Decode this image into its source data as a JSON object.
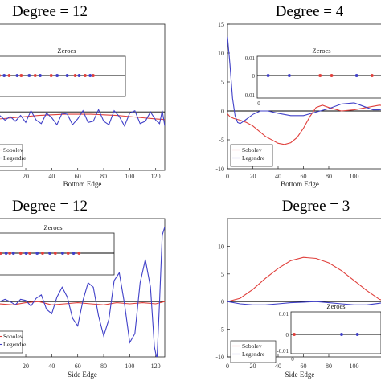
{
  "chart_data": [
    {
      "type": "line",
      "title": "Degree = 12",
      "xlabel": "Bottom Edge",
      "xlim": [
        -6,
        127
      ],
      "ylim": [
        -10,
        15
      ],
      "yticks": [],
      "xticks": [
        20,
        40,
        60,
        80,
        100,
        120
      ],
      "legend": [
        "Sobolev",
        "Legendre"
      ],
      "legend_placement": "bottom-left",
      "series": [
        {
          "name": "Sobolev",
          "color": "#e0403c",
          "x": [
            0,
            10,
            20,
            30,
            40,
            50,
            60,
            70,
            80,
            90,
            100,
            110,
            120,
            127
          ],
          "y": [
            -1.2,
            -1.0,
            -0.8,
            -0.6,
            -0.5,
            -0.4,
            -0.4,
            -0.4,
            -0.5,
            -0.6,
            -0.8,
            -1.0,
            -1.2,
            -1.3
          ]
        },
        {
          "name": "Legendre",
          "color": "#4040c8",
          "x": [
            0,
            4,
            8,
            12,
            16,
            20,
            24,
            28,
            32,
            36,
            40,
            44,
            48,
            52,
            56,
            60,
            64,
            68,
            72,
            76,
            80,
            84,
            88,
            92,
            96,
            100,
            104,
            108,
            112,
            116,
            120,
            123,
            125,
            127
          ],
          "y": [
            -0.6,
            -1.4,
            -0.8,
            -1.6,
            -0.6,
            -1.8,
            0.2,
            -1.4,
            -2.0,
            -0.2,
            -1.0,
            -2.2,
            -0.2,
            -0.4,
            -2.2,
            -1.2,
            0.2,
            -1.8,
            -1.6,
            0.4,
            -1.6,
            -2.2,
            0.2,
            -0.8,
            -2.4,
            -0.2,
            0.2,
            -2.0,
            -1.6,
            0.0,
            -1.4,
            -2.0,
            0.2,
            -2.4
          ]
        }
      ],
      "inset": {
        "title": "Zeroes",
        "show_ticks": false,
        "zeroes": [
          {
            "x": 2,
            "color": "#4040c8"
          },
          {
            "x": 4,
            "color": "#e0403c"
          },
          {
            "x": 9,
            "color": "#4040c8"
          },
          {
            "x": 14,
            "color": "#e0403c"
          },
          {
            "x": 22,
            "color": "#4040c8"
          },
          {
            "x": 26,
            "color": "#e0403c"
          },
          {
            "x": 34,
            "color": "#4040c8"
          },
          {
            "x": 40,
            "color": "#e0403c"
          },
          {
            "x": 45,
            "color": "#4040c8"
          },
          {
            "x": 56,
            "color": "#e0403c"
          },
          {
            "x": 62,
            "color": "#4040c8"
          },
          {
            "x": 72,
            "color": "#4040c8"
          },
          {
            "x": 80,
            "color": "#e0403c"
          },
          {
            "x": 84,
            "color": "#4040c8"
          },
          {
            "x": 90,
            "color": "#e0403c"
          },
          {
            "x": 95,
            "color": "#4040c8"
          },
          {
            "x": 98,
            "color": "#e0403c"
          }
        ]
      }
    },
    {
      "type": "line",
      "title": "Degree = 4",
      "xlabel": "Bottom Edge",
      "xlim": [
        0,
        127
      ],
      "ylim": [
        -10,
        15
      ],
      "yticks": [
        -10,
        -5,
        0,
        5,
        10,
        15
      ],
      "xticks": [
        0,
        20,
        40,
        60,
        80,
        100
      ],
      "legend": [
        "Sobolev",
        "Legendre"
      ],
      "legend_placement": "bottom-left",
      "series": [
        {
          "name": "Sobolev",
          "color": "#e0403c",
          "x": [
            0,
            2,
            5,
            10,
            15,
            20,
            30,
            40,
            45,
            50,
            55,
            60,
            65,
            70,
            75,
            80,
            90,
            100,
            110,
            120,
            127
          ],
          "y": [
            -0.5,
            -1.0,
            -1.3,
            -1.6,
            -2.0,
            -2.6,
            -4.4,
            -5.6,
            -5.8,
            -5.5,
            -4.6,
            -3.0,
            -1.0,
            0.6,
            1.0,
            0.6,
            0.0,
            0.2,
            0.6,
            1.0,
            0.8
          ]
        },
        {
          "name": "Legendre",
          "color": "#4040c8",
          "x": [
            0,
            2,
            4,
            6,
            8,
            10,
            14,
            20,
            26,
            32,
            40,
            50,
            60,
            70,
            80,
            90,
            100,
            105,
            110,
            115,
            120,
            127
          ],
          "y": [
            12.8,
            8.0,
            2.2,
            -0.8,
            -2.0,
            -2.2,
            -1.6,
            -0.6,
            0.0,
            0.0,
            -0.4,
            -0.8,
            -0.8,
            -0.2,
            0.4,
            1.2,
            1.4,
            1.0,
            0.6,
            0.2,
            0.2,
            0.6
          ]
        }
      ],
      "inset": {
        "title": "Zeroes",
        "show_ticks": true,
        "yticks": [
          "0.01",
          "0",
          "-0.01"
        ],
        "xticks_visible": [
          "0"
        ],
        "zeroes": [
          {
            "x": 8,
            "color": "#4040c8"
          },
          {
            "x": 30,
            "color": "#4040c8"
          },
          {
            "x": 62,
            "color": "#e0403c"
          },
          {
            "x": 74,
            "color": "#e0403c"
          },
          {
            "x": 100,
            "color": "#4040c8"
          },
          {
            "x": 116,
            "color": "#e0403c"
          }
        ]
      }
    },
    {
      "type": "line",
      "title": "Degree = 12",
      "xlabel": "Side Edge",
      "xlim": [
        -6,
        127
      ],
      "ylim": [
        -10,
        15
      ],
      "yticks": [],
      "xticks": [
        20,
        40,
        60,
        80,
        100,
        120
      ],
      "legend": [
        "Sobolev",
        "Legendre"
      ],
      "legend_placement": "bottom-left",
      "series": [
        {
          "name": "Sobolev",
          "color": "#e0403c",
          "x": [
            0,
            10,
            20,
            30,
            40,
            50,
            60,
            70,
            80,
            90,
            100,
            110,
            120,
            127
          ],
          "y": [
            -0.4,
            -0.6,
            -0.2,
            0.0,
            -0.6,
            -0.4,
            -0.2,
            -0.4,
            -0.6,
            -0.2,
            -0.4,
            -0.2,
            -0.4,
            0.0
          ]
        },
        {
          "name": "Legendre",
          "color": "#4040c8",
          "x": [
            0,
            4,
            8,
            12,
            16,
            20,
            24,
            28,
            32,
            36,
            40,
            44,
            48,
            52,
            56,
            60,
            64,
            68,
            72,
            76,
            80,
            84,
            88,
            92,
            96,
            100,
            104,
            108,
            112,
            116,
            119,
            121,
            123,
            125,
            127
          ],
          "y": [
            0.0,
            0.4,
            0.0,
            -0.6,
            0.4,
            0.2,
            -0.8,
            0.6,
            1.2,
            -1.4,
            -2.2,
            0.8,
            2.6,
            0.8,
            -3.0,
            -4.4,
            0.2,
            3.4,
            2.6,
            -2.6,
            -6.2,
            -3.2,
            3.8,
            5.2,
            -0.4,
            -7.4,
            -5.8,
            3.4,
            7.6,
            2.6,
            -8.2,
            -10.5,
            0.0,
            12.0,
            13.5
          ]
        }
      ],
      "inset": {
        "title": "Zeroes",
        "show_ticks": false,
        "zeroes": [
          {
            "x": 3,
            "color": "#4040c8"
          },
          {
            "x": 6,
            "color": "#e0403c"
          },
          {
            "x": 12,
            "color": "#4040c8"
          },
          {
            "x": 16,
            "color": "#e0403c"
          },
          {
            "x": 20,
            "color": "#4040c8"
          },
          {
            "x": 28,
            "color": "#e0403c"
          },
          {
            "x": 34,
            "color": "#4040c8"
          },
          {
            "x": 38,
            "color": "#e0403c"
          },
          {
            "x": 46,
            "color": "#4040c8"
          },
          {
            "x": 52,
            "color": "#e0403c"
          },
          {
            "x": 60,
            "color": "#4040c8"
          },
          {
            "x": 66,
            "color": "#e0403c"
          },
          {
            "x": 74,
            "color": "#4040c8"
          },
          {
            "x": 80,
            "color": "#e0403c"
          },
          {
            "x": 86,
            "color": "#4040c8"
          },
          {
            "x": 92,
            "color": "#e0403c"
          }
        ]
      }
    },
    {
      "type": "line",
      "title": "Degree = 3",
      "xlabel": "Side Edge",
      "xlim": [
        0,
        127
      ],
      "ylim": [
        -10,
        15
      ],
      "yticks": [
        -10,
        -5,
        0,
        5,
        10
      ],
      "xticks": [
        0,
        20,
        40,
        60,
        80,
        100
      ],
      "legend": [
        "Sobolev",
        "Legendre"
      ],
      "legend_placement": "bottom-left",
      "series": [
        {
          "name": "Sobolev",
          "color": "#e0403c",
          "x": [
            0,
            10,
            20,
            30,
            40,
            50,
            60,
            70,
            80,
            90,
            100,
            110,
            120,
            127
          ],
          "y": [
            0.0,
            0.6,
            2.2,
            4.2,
            6.0,
            7.4,
            8.0,
            7.8,
            7.0,
            5.6,
            3.8,
            2.0,
            0.4,
            0.0
          ]
        },
        {
          "name": "Legendre",
          "color": "#4040c8",
          "x": [
            0,
            10,
            20,
            30,
            40,
            50,
            60,
            70,
            80,
            90,
            100,
            110,
            120,
            127
          ],
          "y": [
            0.0,
            -0.4,
            -0.6,
            -0.6,
            -0.4,
            -0.2,
            -0.1,
            0.0,
            -0.2,
            -0.4,
            -0.6,
            -0.6,
            -0.3,
            0.0
          ]
        },
        {
          "name": "",
          "color": "#000000",
          "x": [
            0,
            127
          ],
          "y": [
            0,
            0
          ]
        }
      ],
      "inset": {
        "title": "Zeroes",
        "show_ticks": true,
        "yticks": [
          "0.01",
          "0",
          "-0.01"
        ],
        "xticks_visible": [
          "0"
        ],
        "zeroes": [
          {
            "x": 0,
            "color": "#e0403c"
          },
          {
            "x": 72,
            "color": "#4040c8"
          },
          {
            "x": 96,
            "color": "#4040c8"
          }
        ]
      }
    }
  ]
}
